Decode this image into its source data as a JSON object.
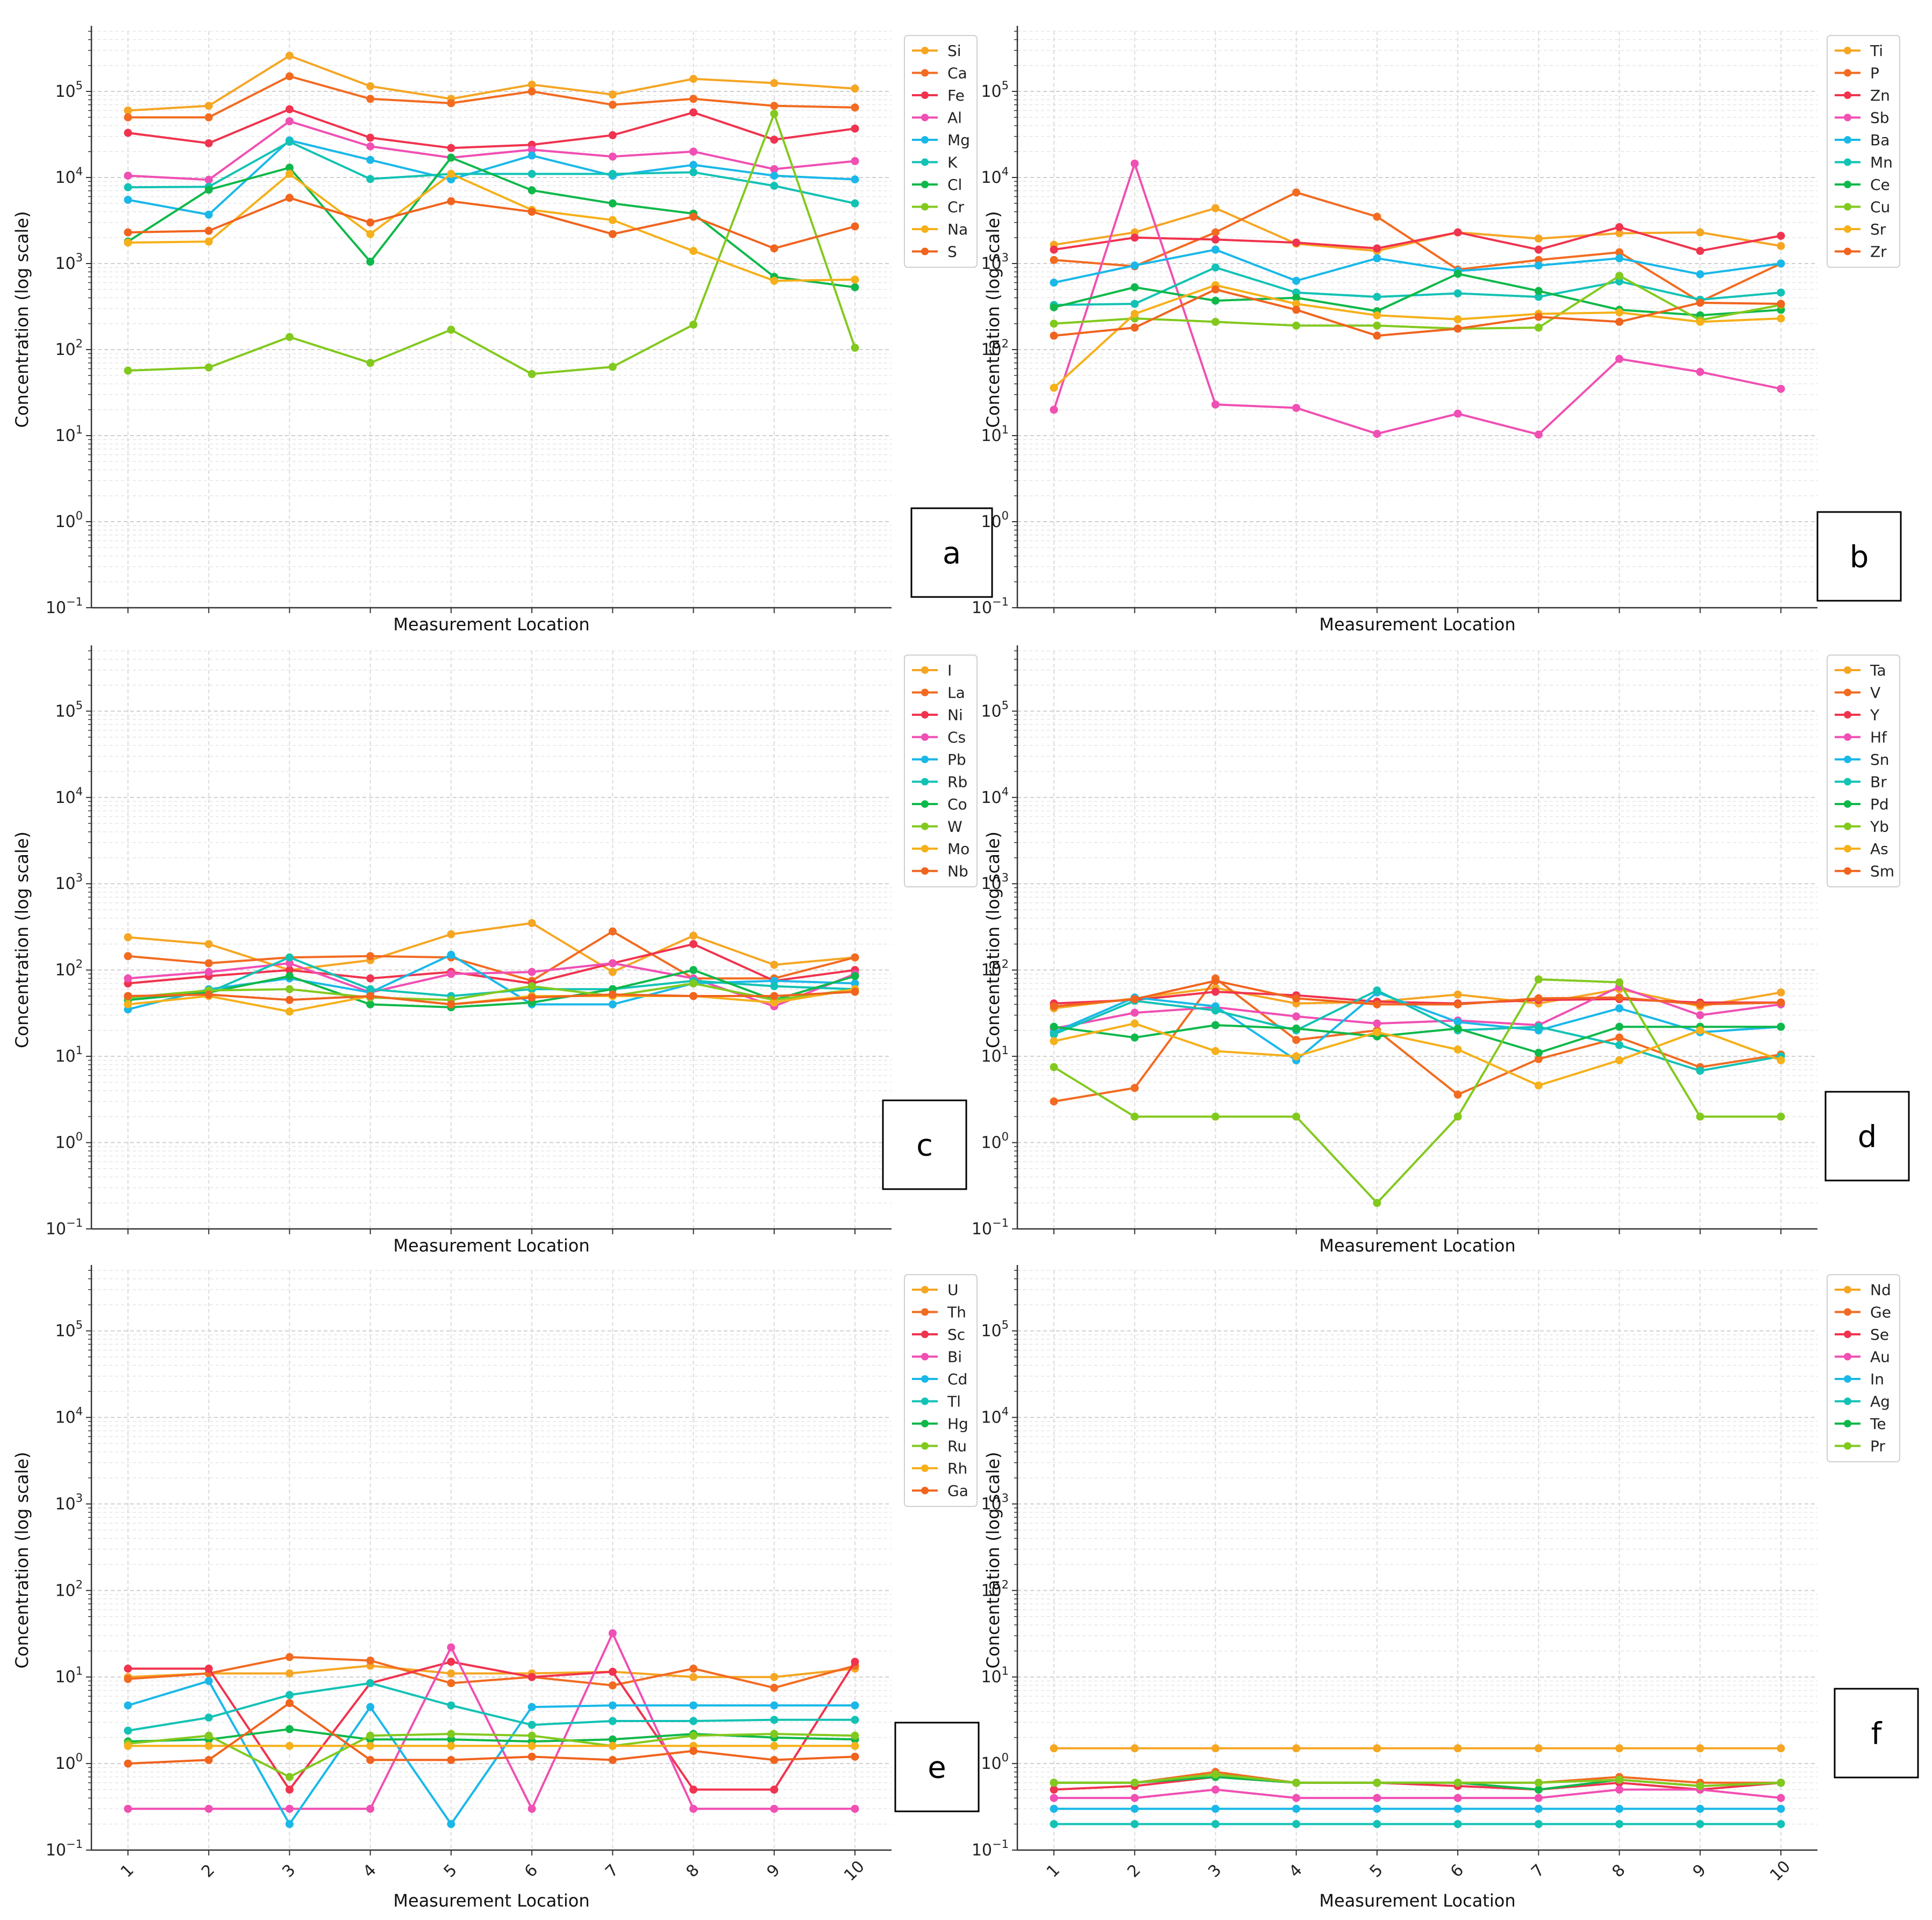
{
  "figure": {
    "x_ticks": [
      "1",
      "2",
      "3",
      "4",
      "5",
      "6",
      "7",
      "8",
      "9",
      "10"
    ],
    "y_range": [
      -1,
      5.7
    ],
    "y_scale": "log",
    "y_tick_exponents": [
      "−1",
      "0",
      "1",
      "2",
      "3",
      "4",
      "5"
    ],
    "y_tick_base": "10",
    "grid": "on",
    "legend_placement": "top-right"
  },
  "chart_data": [
    {
      "type": "line",
      "panel_label": "a",
      "xlabel": "Measurement Location",
      "ylabel": "Concentration (log scale)",
      "x": [
        1,
        2,
        3,
        4,
        5,
        6,
        7,
        8,
        9,
        10
      ],
      "ylim": [
        0.1,
        500000
      ],
      "series": [
        {
          "name": "Si",
          "color": "#f5a623",
          "values": [
            60000,
            68000,
            260000,
            115000,
            82000,
            120000,
            92000,
            140000,
            125000,
            108000
          ]
        },
        {
          "name": "Ca",
          "color": "#f26b21",
          "values": [
            50000,
            50000,
            150000,
            82000,
            73000,
            100000,
            70000,
            82000,
            68000,
            65000
          ]
        },
        {
          "name": "Fe",
          "color": "#f0334e",
          "values": [
            33000,
            25000,
            62000,
            29000,
            22000,
            24000,
            31000,
            57000,
            27500,
            37000
          ]
        },
        {
          "name": "Al",
          "color": "#f04fb3",
          "values": [
            10500,
            9400,
            45000,
            23000,
            17000,
            21000,
            17500,
            20000,
            12500,
            15500
          ]
        },
        {
          "name": "Mg",
          "color": "#1ab8e8",
          "values": [
            5500,
            3700,
            27000,
            16000,
            9500,
            18000,
            10500,
            14000,
            10500,
            9500
          ]
        },
        {
          "name": "K",
          "color": "#13c2b5",
          "values": [
            7700,
            7800,
            26000,
            9600,
            11000,
            11000,
            11000,
            11500,
            8000,
            5000
          ]
        },
        {
          "name": "Cl",
          "color": "#0fb84a",
          "values": [
            1800,
            7200,
            13000,
            1050,
            17000,
            7100,
            5000,
            3800,
            700,
            530
          ]
        },
        {
          "name": "Cr",
          "color": "#82c91e",
          "values": [
            57,
            62,
            140,
            70,
            170,
            52,
            63,
            195,
            55000,
            105
          ]
        },
        {
          "name": "Na",
          "color": "#f5b01a",
          "values": [
            1750,
            1800,
            11000,
            2200,
            11000,
            4200,
            3200,
            1400,
            630,
            650
          ]
        },
        {
          "name": "S",
          "color": "#f0641e",
          "values": [
            2300,
            2400,
            5800,
            3000,
            5300,
            4000,
            2200,
            3500,
            1500,
            2700
          ]
        }
      ]
    },
    {
      "type": "line",
      "panel_label": "b",
      "xlabel": "Measurement Location",
      "ylabel": "",
      "x": [
        1,
        2,
        3,
        4,
        5,
        6,
        7,
        8,
        9,
        10
      ],
      "ylim": [
        0.1,
        500000
      ],
      "series": [
        {
          "name": "Ti",
          "color": "#f5a623",
          "values": [
            1650,
            2300,
            4400,
            1700,
            1400,
            2300,
            1950,
            2250,
            2300,
            1600
          ]
        },
        {
          "name": "P",
          "color": "#f26b21",
          "values": [
            1100,
            930,
            2300,
            6700,
            3500,
            850,
            1100,
            1350,
            360,
            1000
          ]
        },
        {
          "name": "Zn",
          "color": "#f0334e",
          "values": [
            1450,
            2000,
            1900,
            1750,
            1500,
            2300,
            1450,
            2650,
            1400,
            2100
          ]
        },
        {
          "name": "Sb",
          "color": "#f04fb3",
          "values": [
            20,
            14500,
            23,
            21,
            10.5,
            18,
            10.3,
            78,
            55,
            35
          ]
        },
        {
          "name": "Ba",
          "color": "#1ab8e8",
          "values": [
            600,
            950,
            1450,
            630,
            1150,
            820,
            950,
            1150,
            750,
            1000
          ]
        },
        {
          "name": "Mn",
          "color": "#13c2b5",
          "values": [
            330,
            340,
            900,
            460,
            410,
            450,
            410,
            620,
            380,
            460
          ]
        },
        {
          "name": "Ce",
          "color": "#0fb84a",
          "values": [
            310,
            530,
            370,
            400,
            280,
            760,
            480,
            290,
            250,
            290
          ]
        },
        {
          "name": "Cu",
          "color": "#82c91e",
          "values": [
            200,
            230,
            210,
            190,
            190,
            175,
            180,
            720,
            220,
            330
          ]
        },
        {
          "name": "Sr",
          "color": "#f5b01a",
          "values": [
            36,
            260,
            560,
            340,
            250,
            225,
            260,
            270,
            210,
            230
          ]
        },
        {
          "name": "Zr",
          "color": "#f0641e",
          "values": [
            145,
            180,
            500,
            290,
            145,
            175,
            240,
            210,
            350,
            340
          ]
        }
      ]
    },
    {
      "type": "line",
      "panel_label": "c",
      "xlabel": "Measurement Location",
      "ylabel": "Concentration (log scale)",
      "x": [
        1,
        2,
        3,
        4,
        5,
        6,
        7,
        8,
        9,
        10
      ],
      "ylim": [
        0.1,
        500000
      ],
      "series": [
        {
          "name": "I",
          "color": "#f5a623",
          "values": [
            240,
            200,
            100,
            130,
            260,
            350,
            95,
            250,
            115,
            140
          ]
        },
        {
          "name": "La",
          "color": "#f26b21",
          "values": [
            145,
            120,
            140,
            145,
            140,
            75,
            280,
            80,
            80,
            140
          ]
        },
        {
          "name": "Ni",
          "color": "#f0334e",
          "values": [
            70,
            85,
            100,
            80,
            95,
            70,
            120,
            200,
            75,
            100
          ]
        },
        {
          "name": "Cs",
          "color": "#f04fb3",
          "values": [
            80,
            95,
            120,
            55,
            90,
            95,
            120,
            80,
            38,
            90
          ]
        },
        {
          "name": "Pb",
          "color": "#1ab8e8",
          "values": [
            35,
            60,
            80,
            55,
            150,
            40,
            40,
            70,
            75,
            70
          ]
        },
        {
          "name": "Rb",
          "color": "#13c2b5",
          "values": [
            45,
            55,
            140,
            60,
            50,
            60,
            60,
            75,
            65,
            60
          ]
        },
        {
          "name": "Co",
          "color": "#0fb84a",
          "values": [
            45,
            55,
            85,
            40,
            37,
            42,
            60,
            100,
            45,
            85
          ]
        },
        {
          "name": "W",
          "color": "#82c91e",
          "values": [
            48,
            58,
            60,
            48,
            45,
            65,
            50,
            70,
            45,
            60
          ]
        },
        {
          "name": "Mo",
          "color": "#f5b01a",
          "values": [
            40,
            50,
            33,
            50,
            40,
            50,
            50,
            50,
            42,
            60
          ]
        },
        {
          "name": "Nb",
          "color": "#f0641e",
          "values": [
            50,
            52,
            45,
            50,
            40,
            48,
            52,
            50,
            50,
            56
          ]
        }
      ]
    },
    {
      "type": "line",
      "panel_label": "d",
      "xlabel": "Measurement Location",
      "ylabel": "",
      "x": [
        1,
        2,
        3,
        4,
        5,
        6,
        7,
        8,
        9,
        10
      ],
      "ylim": [
        0.1,
        500000
      ],
      "series": [
        {
          "name": "Ta",
          "color": "#f5a623",
          "values": [
            36,
            47,
            62,
            41,
            43,
            52,
            41,
            60,
            38,
            55
          ]
        },
        {
          "name": "V",
          "color": "#f26b21",
          "values": [
            3,
            4.3,
            80,
            15.5,
            20,
            3.6,
            9.3,
            16.5,
            7.5,
            10.5
          ]
        },
        {
          "name": "Y",
          "color": "#f0334e",
          "values": [
            41,
            45,
            56,
            51,
            43,
            41,
            45,
            46,
            42,
            42
          ]
        },
        {
          "name": "Hf",
          "color": "#f04fb3",
          "values": [
            21,
            32,
            37,
            29,
            24,
            26,
            23,
            64,
            30,
            40
          ]
        },
        {
          "name": "Sn",
          "color": "#1ab8e8",
          "values": [
            19,
            48,
            38,
            9,
            55,
            25,
            20,
            36,
            19,
            22
          ]
        },
        {
          "name": "Br",
          "color": "#13c2b5",
          "values": [
            18,
            44,
            34,
            20,
            58,
            20,
            22,
            13.5,
            6.8,
            10
          ]
        },
        {
          "name": "Pd",
          "color": "#0fb84a",
          "values": [
            22,
            16.5,
            23,
            21,
            17,
            21,
            11,
            22,
            22,
            22
          ]
        },
        {
          "name": "Yb",
          "color": "#82c91e",
          "values": [
            7.5,
            2,
            2,
            2,
            0.2,
            2,
            78,
            72,
            2,
            2
          ]
        },
        {
          "name": "As",
          "color": "#f5b01a",
          "values": [
            15,
            24,
            11.5,
            10,
            19,
            12,
            4.6,
            9,
            20,
            9
          ]
        },
        {
          "name": "Sm",
          "color": "#f0641e",
          "values": [
            38,
            46,
            75,
            47,
            40,
            40,
            47,
            48,
            40,
            42
          ]
        }
      ]
    },
    {
      "type": "line",
      "panel_label": "e",
      "xlabel": "Measurement Location",
      "ylabel": "Concentration (log scale)",
      "x": [
        1,
        2,
        3,
        4,
        5,
        6,
        7,
        8,
        9,
        10
      ],
      "ylim": [
        0.1,
        500000
      ],
      "series": [
        {
          "name": "U",
          "color": "#f5a623",
          "values": [
            10,
            11,
            11,
            13.5,
            11,
            11,
            11.5,
            10,
            10,
            12.5
          ]
        },
        {
          "name": "Th",
          "color": "#f26b21",
          "values": [
            9.5,
            11,
            17,
            15.5,
            8.5,
            10,
            8,
            12.5,
            7.5,
            13.5
          ]
        },
        {
          "name": "Sc",
          "color": "#f0334e",
          "values": [
            12.5,
            12.5,
            0.5,
            8.5,
            15,
            10,
            11.5,
            0.5,
            0.5,
            15
          ]
        },
        {
          "name": "Bi",
          "color": "#f04fb3",
          "values": [
            0.3,
            0.3,
            0.3,
            0.3,
            22,
            0.3,
            32,
            0.3,
            0.3,
            0.3
          ]
        },
        {
          "name": "Cd",
          "color": "#1ab8e8",
          "values": [
            4.7,
            9,
            0.2,
            4.5,
            0.2,
            4.5,
            4.7,
            4.7,
            4.7,
            4.7
          ]
        },
        {
          "name": "Tl",
          "color": "#13c2b5",
          "values": [
            2.4,
            3.4,
            6.2,
            8.5,
            4.7,
            2.8,
            3.1,
            3.1,
            3.2,
            3.2
          ]
        },
        {
          "name": "Hg",
          "color": "#0fb84a",
          "values": [
            1.8,
            1.9,
            2.5,
            1.9,
            1.9,
            1.8,
            1.9,
            2.2,
            2,
            1.9
          ]
        },
        {
          "name": "Ru",
          "color": "#82c91e",
          "values": [
            1.7,
            2.1,
            0.7,
            2.1,
            2.2,
            2.1,
            1.6,
            2.1,
            2.2,
            2.1
          ]
        },
        {
          "name": "Rh",
          "color": "#f5b01a",
          "values": [
            1.6,
            1.6,
            1.6,
            1.6,
            1.6,
            1.6,
            1.6,
            1.6,
            1.6,
            1.6
          ]
        },
        {
          "name": "Ga",
          "color": "#f0641e",
          "values": [
            1,
            1.1,
            5,
            1.1,
            1.1,
            1.2,
            1.1,
            1.4,
            1.1,
            1.2
          ]
        }
      ]
    },
    {
      "type": "line",
      "panel_label": "f",
      "xlabel": "Measurement Location",
      "ylabel": "",
      "x": [
        1,
        2,
        3,
        4,
        5,
        6,
        7,
        8,
        9,
        10
      ],
      "ylim": [
        0.1,
        500000
      ],
      "series": [
        {
          "name": "Nd",
          "color": "#f5a623",
          "values": [
            1.5,
            1.5,
            1.5,
            1.5,
            1.5,
            1.5,
            1.5,
            1.5,
            1.5,
            1.5
          ]
        },
        {
          "name": "Ge",
          "color": "#f26b21",
          "values": [
            0.6,
            0.6,
            0.8,
            0.6,
            0.6,
            0.6,
            0.6,
            0.7,
            0.6,
            0.6
          ]
        },
        {
          "name": "Se",
          "color": "#f0334e",
          "values": [
            0.5,
            0.55,
            0.7,
            0.6,
            0.6,
            0.55,
            0.5,
            0.6,
            0.5,
            0.6
          ]
        },
        {
          "name": "Au",
          "color": "#f04fb3",
          "values": [
            0.4,
            0.4,
            0.5,
            0.4,
            0.4,
            0.4,
            0.4,
            0.5,
            0.5,
            0.4
          ]
        },
        {
          "name": "In",
          "color": "#1ab8e8",
          "values": [
            0.3,
            0.3,
            0.3,
            0.3,
            0.3,
            0.3,
            0.3,
            0.3,
            0.3,
            0.3
          ]
        },
        {
          "name": "Ag",
          "color": "#13c2b5",
          "values": [
            0.2,
            0.2,
            0.2,
            0.2,
            0.2,
            0.2,
            0.2,
            0.2,
            0.2,
            0.2
          ]
        },
        {
          "name": "Te",
          "color": "#0fb84a",
          "values": [
            0.6,
            0.6,
            0.7,
            0.6,
            0.6,
            0.6,
            0.5,
            0.65,
            0.55,
            0.6
          ]
        },
        {
          "name": "Pr",
          "color": "#82c91e",
          "values": [
            0.6,
            0.6,
            0.75,
            0.6,
            0.6,
            0.6,
            0.6,
            0.65,
            0.55,
            0.6
          ]
        }
      ]
    }
  ]
}
